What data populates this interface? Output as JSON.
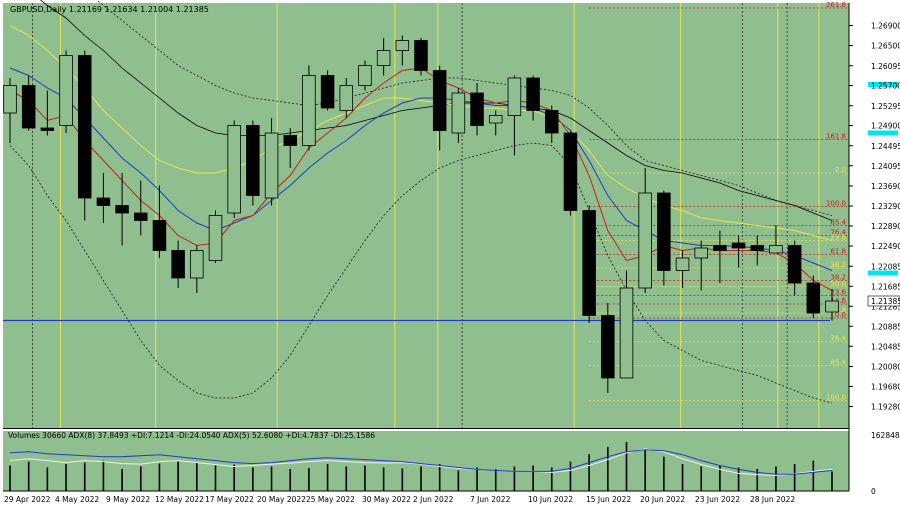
{
  "header": {
    "symbol_line": "GBPUSD,Daily  1.21169 1.21634 1.21004 1.21385"
  },
  "colors": {
    "plot_bg": "#8fbf8f",
    "bull_body": "#8fbf8f",
    "bear_body": "#000000",
    "ma_red": "#c81e1e",
    "ma_blue": "#1e3cc8",
    "ma_yellow": "#e6e650",
    "ma_black": "#000000",
    "vertical_lines": "#e6e650",
    "horizontal_blue": "#1e3cc8",
    "cyan_marker": "#00e5ee",
    "fib_red": "#c81e1e",
    "fib_yellow": "#e6e650",
    "adx_white": "#f0f0f0",
    "adx_blue": "#1e3cc8"
  },
  "chart_data": {
    "type": "candlestick",
    "price_axis": {
      "ticks": [
        "1.26900",
        "1.26500",
        "1.26095",
        "1.25700",
        "1.25295",
        "1.24900",
        "1.24495",
        "1.24095",
        "1.23690",
        "1.23290",
        "1.22890",
        "1.22490",
        "1.22085",
        "1.21685",
        "1.21285",
        "1.20885",
        "1.20485",
        "1.20080",
        "1.19680",
        "1.19280"
      ],
      "range": [
        1.1885,
        1.2735
      ],
      "current_price_label": "1.21385",
      "cyan_levels": [
        1.2572,
        1.2475,
        1.2195
      ]
    },
    "date_axis": {
      "labels": [
        "29 Apr 2022",
        "4 May 2022",
        "9 May 2022",
        "12 May 2022",
        "17 May 2022",
        "20 May 2022",
        "25 May 2022",
        "30 May 2022",
        "2 Jun 2022",
        "7 Jun 2022",
        "10 Jun 2022",
        "15 Jun 2022",
        "20 Jun 2022",
        "23 Jun 2022",
        "28 Jun 2022"
      ]
    },
    "candles": [
      {
        "o": 1.2515,
        "h": 1.2585,
        "l": 1.2455,
        "c": 1.257
      },
      {
        "o": 1.257,
        "h": 1.259,
        "l": 1.248,
        "c": 1.2485
      },
      {
        "o": 1.2485,
        "h": 1.256,
        "l": 1.247,
        "c": 1.248
      },
      {
        "o": 1.249,
        "h": 1.264,
        "l": 1.2475,
        "c": 1.263
      },
      {
        "o": 1.263,
        "h": 1.264,
        "l": 1.23,
        "c": 1.2345
      },
      {
        "o": 1.2345,
        "h": 1.2395,
        "l": 1.2295,
        "c": 1.233
      },
      {
        "o": 1.233,
        "h": 1.2395,
        "l": 1.225,
        "c": 1.2315
      },
      {
        "o": 1.2315,
        "h": 1.238,
        "l": 1.227,
        "c": 1.23
      },
      {
        "o": 1.23,
        "h": 1.237,
        "l": 1.2225,
        "c": 1.224
      },
      {
        "o": 1.224,
        "h": 1.226,
        "l": 1.2165,
        "c": 1.2185
      },
      {
        "o": 1.2185,
        "h": 1.225,
        "l": 1.2155,
        "c": 1.224
      },
      {
        "o": 1.222,
        "h": 1.232,
        "l": 1.2215,
        "c": 1.231
      },
      {
        "o": 1.2315,
        "h": 1.25,
        "l": 1.2305,
        "c": 1.249
      },
      {
        "o": 1.249,
        "h": 1.25,
        "l": 1.233,
        "c": 1.235
      },
      {
        "o": 1.2345,
        "h": 1.2505,
        "l": 1.233,
        "c": 1.2475
      },
      {
        "o": 1.247,
        "h": 1.2485,
        "l": 1.2405,
        "c": 1.245
      },
      {
        "o": 1.245,
        "h": 1.261,
        "l": 1.244,
        "c": 1.259
      },
      {
        "o": 1.259,
        "h": 1.26,
        "l": 1.252,
        "c": 1.2525
      },
      {
        "o": 1.252,
        "h": 1.2585,
        "l": 1.2505,
        "c": 1.257
      },
      {
        "o": 1.257,
        "h": 1.262,
        "l": 1.256,
        "c": 1.261
      },
      {
        "o": 1.261,
        "h": 1.2665,
        "l": 1.259,
        "c": 1.264
      },
      {
        "o": 1.264,
        "h": 1.267,
        "l": 1.261,
        "c": 1.266
      },
      {
        "o": 1.266,
        "h": 1.2665,
        "l": 1.259,
        "c": 1.26
      },
      {
        "o": 1.26,
        "h": 1.261,
        "l": 1.244,
        "c": 1.248
      },
      {
        "o": 1.2475,
        "h": 1.2565,
        "l": 1.2455,
        "c": 1.2555
      },
      {
        "o": 1.2555,
        "h": 1.2575,
        "l": 1.247,
        "c": 1.249
      },
      {
        "o": 1.2495,
        "h": 1.252,
        "l": 1.247,
        "c": 1.251
      },
      {
        "o": 1.251,
        "h": 1.259,
        "l": 1.243,
        "c": 1.2585
      },
      {
        "o": 1.2585,
        "h": 1.259,
        "l": 1.25,
        "c": 1.252
      },
      {
        "o": 1.252,
        "h": 1.253,
        "l": 1.2455,
        "c": 1.2475
      },
      {
        "o": 1.2475,
        "h": 1.248,
        "l": 1.231,
        "c": 1.232
      },
      {
        "o": 1.232,
        "h": 1.233,
        "l": 1.2095,
        "c": 1.211
      },
      {
        "o": 1.211,
        "h": 1.2135,
        "l": 1.1955,
        "c": 1.1985
      },
      {
        "o": 1.1985,
        "h": 1.22,
        "l": 1.1985,
        "c": 1.2165
      },
      {
        "o": 1.2165,
        "h": 1.2405,
        "l": 1.2155,
        "c": 1.2355
      },
      {
        "o": 1.2355,
        "h": 1.236,
        "l": 1.217,
        "c": 1.22
      },
      {
        "o": 1.22,
        "h": 1.224,
        "l": 1.2165,
        "c": 1.2225
      },
      {
        "o": 1.2225,
        "h": 1.226,
        "l": 1.216,
        "c": 1.2245
      },
      {
        "o": 1.225,
        "h": 1.228,
        "l": 1.2175,
        "c": 1.224
      },
      {
        "o": 1.2255,
        "h": 1.227,
        "l": 1.2205,
        "c": 1.2245
      },
      {
        "o": 1.225,
        "h": 1.227,
        "l": 1.221,
        "c": 1.224
      },
      {
        "o": 1.2235,
        "h": 1.229,
        "l": 1.2235,
        "c": 1.225
      },
      {
        "o": 1.225,
        "h": 1.226,
        "l": 1.215,
        "c": 1.2175
      },
      {
        "o": 1.2175,
        "h": 1.219,
        "l": 1.2105,
        "c": 1.2115
      },
      {
        "o": 1.2117,
        "h": 1.2163,
        "l": 1.21,
        "c": 1.2139
      }
    ],
    "fib_levels": [
      {
        "label": "161.8",
        "value": 1.2462,
        "color": "red"
      },
      {
        "label": "0.0",
        "value": 1.2395,
        "color": "yellow"
      },
      {
        "label": "100.0",
        "value": 1.2328,
        "color": "red"
      },
      {
        "label": "85.4",
        "value": 1.229,
        "color": "red"
      },
      {
        "label": "76.4",
        "value": 1.227,
        "color": "red"
      },
      {
        "label": "23.6",
        "value": 1.226,
        "color": "yellow"
      },
      {
        "label": "61.8",
        "value": 1.2232,
        "color": "red"
      },
      {
        "label": "38.2",
        "value": 1.2205,
        "color": "yellow"
      },
      {
        "label": "38.2",
        "value": 1.218,
        "color": "red"
      },
      {
        "label": "50.0",
        "value": 1.2168,
        "color": "yellow"
      },
      {
        "label": "23.6",
        "value": 1.215,
        "color": "red"
      },
      {
        "label": "61.8",
        "value": 1.2115,
        "color": "yellow"
      },
      {
        "label": "14.6",
        "value": 1.2133,
        "color": "red"
      },
      {
        "label": "0.0",
        "value": 1.2105,
        "color": "red"
      },
      {
        "label": "76.4",
        "value": 1.2058,
        "color": "yellow"
      },
      {
        "label": "85.4",
        "value": 1.201,
        "color": "yellow"
      },
      {
        "label": "100.0",
        "value": 1.194,
        "color": "yellow"
      },
      {
        "label": "261.8",
        "value": 1.2725,
        "color": "red"
      }
    ],
    "moving_averages": {
      "red": [
        1.256,
        1.254,
        1.25,
        1.251,
        1.246,
        1.242,
        1.238,
        1.234,
        1.231,
        1.227,
        1.225,
        1.2255,
        1.23,
        1.231,
        1.2355,
        1.239,
        1.2445,
        1.2475,
        1.2505,
        1.2545,
        1.2575,
        1.26,
        1.2605,
        1.258,
        1.2565,
        1.2545,
        1.2535,
        1.254,
        1.2535,
        1.252,
        1.247,
        1.239,
        1.228,
        1.222,
        1.223,
        1.225,
        1.224,
        1.2245,
        1.224,
        1.224,
        1.224,
        1.2235,
        1.2215,
        1.218,
        1.216
      ],
      "blue": [
        1.2605,
        1.259,
        1.2565,
        1.2545,
        1.2505,
        1.2465,
        1.2425,
        1.2395,
        1.236,
        1.232,
        1.2295,
        1.228,
        1.2295,
        1.231,
        1.234,
        1.237,
        1.2405,
        1.2435,
        1.246,
        1.249,
        1.2515,
        1.2535,
        1.2545,
        1.2545,
        1.254,
        1.2535,
        1.253,
        1.253,
        1.2525,
        1.251,
        1.248,
        1.242,
        1.235,
        1.23,
        1.228,
        1.226,
        1.2255,
        1.225,
        1.225,
        1.2248,
        1.2245,
        1.224,
        1.223,
        1.2215,
        1.22
      ],
      "yellow": [
        1.269,
        1.267,
        1.264,
        1.2605,
        1.2565,
        1.252,
        1.2485,
        1.245,
        1.242,
        1.2405,
        1.2395,
        1.2395,
        1.2405,
        1.242,
        1.2445,
        1.246,
        1.248,
        1.25,
        1.2515,
        1.253,
        1.2545,
        1.2545,
        1.254,
        1.2535,
        1.253,
        1.2525,
        1.2525,
        1.252,
        1.252,
        1.2505,
        1.248,
        1.244,
        1.239,
        1.2365,
        1.2345,
        1.233,
        1.232,
        1.2305,
        1.23,
        1.2295,
        1.229,
        1.2285,
        1.228,
        1.227,
        1.226
      ],
      "black": [
        1.278,
        1.276,
        1.273,
        1.2705,
        1.267,
        1.264,
        1.2605,
        1.2575,
        1.2545,
        1.2515,
        1.249,
        1.2475,
        1.247,
        1.247,
        1.247,
        1.2475,
        1.248,
        1.2485,
        1.249,
        1.25,
        1.251,
        1.252,
        1.2525,
        1.253,
        1.2535,
        1.2535,
        1.2535,
        1.253,
        1.2525,
        1.252,
        1.2505,
        1.248,
        1.2455,
        1.243,
        1.241,
        1.24,
        1.2395,
        1.2385,
        1.2375,
        1.236,
        1.235,
        1.234,
        1.233,
        1.2315,
        1.23
      ]
    },
    "bollinger": {
      "upper": [
        1.28,
        1.28,
        1.2795,
        1.278,
        1.276,
        1.273,
        1.27,
        1.267,
        1.264,
        1.261,
        1.259,
        1.257,
        1.2555,
        1.2545,
        1.254,
        1.2535,
        1.253,
        1.2535,
        1.2545,
        1.2555,
        1.2565,
        1.2575,
        1.258,
        1.2585,
        1.2585,
        1.258,
        1.2575,
        1.257,
        1.2565,
        1.256,
        1.255,
        1.2525,
        1.249,
        1.245,
        1.242,
        1.241,
        1.24,
        1.239,
        1.238,
        1.237,
        1.2355,
        1.234,
        1.233,
        1.232,
        1.231
      ],
      "lower": [
        1.245,
        1.241,
        1.235,
        1.23,
        1.224,
        1.218,
        1.212,
        1.206,
        1.201,
        1.198,
        1.1955,
        1.1945,
        1.1945,
        1.1955,
        1.1985,
        1.203,
        1.209,
        1.215,
        1.2205,
        1.226,
        1.231,
        1.235,
        1.238,
        1.2405,
        1.242,
        1.243,
        1.244,
        1.245,
        1.2455,
        1.245,
        1.241,
        1.232,
        1.223,
        1.216,
        1.21,
        1.206,
        1.204,
        1.202,
        1.201,
        1.2,
        1.199,
        1.1975,
        1.196,
        1.1945,
        1.1935
      ]
    },
    "indicator": {
      "label": "Volumes 30660  ADX(8) 37.8493 +DI:7.1214 -DI:24.0540  ADX(5) 52.6080 +DI:4.7837 -DI:25.1586",
      "scale_top": "162848",
      "scale_bottom": "0",
      "volumes": [
        52,
        60,
        48,
        55,
        58,
        62,
        45,
        50,
        56,
        60,
        58,
        52,
        54,
        48,
        50,
        45,
        47,
        55,
        50,
        52,
        48,
        46,
        50,
        55,
        42,
        48,
        45,
        50,
        52,
        48,
        60,
        75,
        90,
        100,
        85,
        70,
        55,
        50,
        52,
        48,
        45,
        50,
        55,
        62,
        40
      ],
      "adx_white": [
        0.62,
        0.66,
        0.62,
        0.58,
        0.62,
        0.6,
        0.56,
        0.55,
        0.6,
        0.62,
        0.58,
        0.54,
        0.5,
        0.52,
        0.55,
        0.57,
        0.6,
        0.62,
        0.6,
        0.58,
        0.57,
        0.58,
        0.55,
        0.5,
        0.46,
        0.44,
        0.42,
        0.4,
        0.4,
        0.38,
        0.42,
        0.52,
        0.64,
        0.78,
        0.86,
        0.8,
        0.66,
        0.54,
        0.44,
        0.36,
        0.33,
        0.32,
        0.35,
        0.4,
        0.44
      ],
      "adx_blue": [
        0.78,
        0.8,
        0.76,
        0.74,
        0.72,
        0.7,
        0.7,
        0.72,
        0.74,
        0.7,
        0.66,
        0.62,
        0.58,
        0.56,
        0.58,
        0.62,
        0.66,
        0.68,
        0.66,
        0.64,
        0.62,
        0.6,
        0.56,
        0.52,
        0.48,
        0.44,
        0.42,
        0.4,
        0.4,
        0.4,
        0.46,
        0.58,
        0.7,
        0.8,
        0.84,
        0.82,
        0.74,
        0.62,
        0.52,
        0.44,
        0.38,
        0.34,
        0.34,
        0.38,
        0.42
      ]
    },
    "blue_horizontal_level": 1.21
  }
}
